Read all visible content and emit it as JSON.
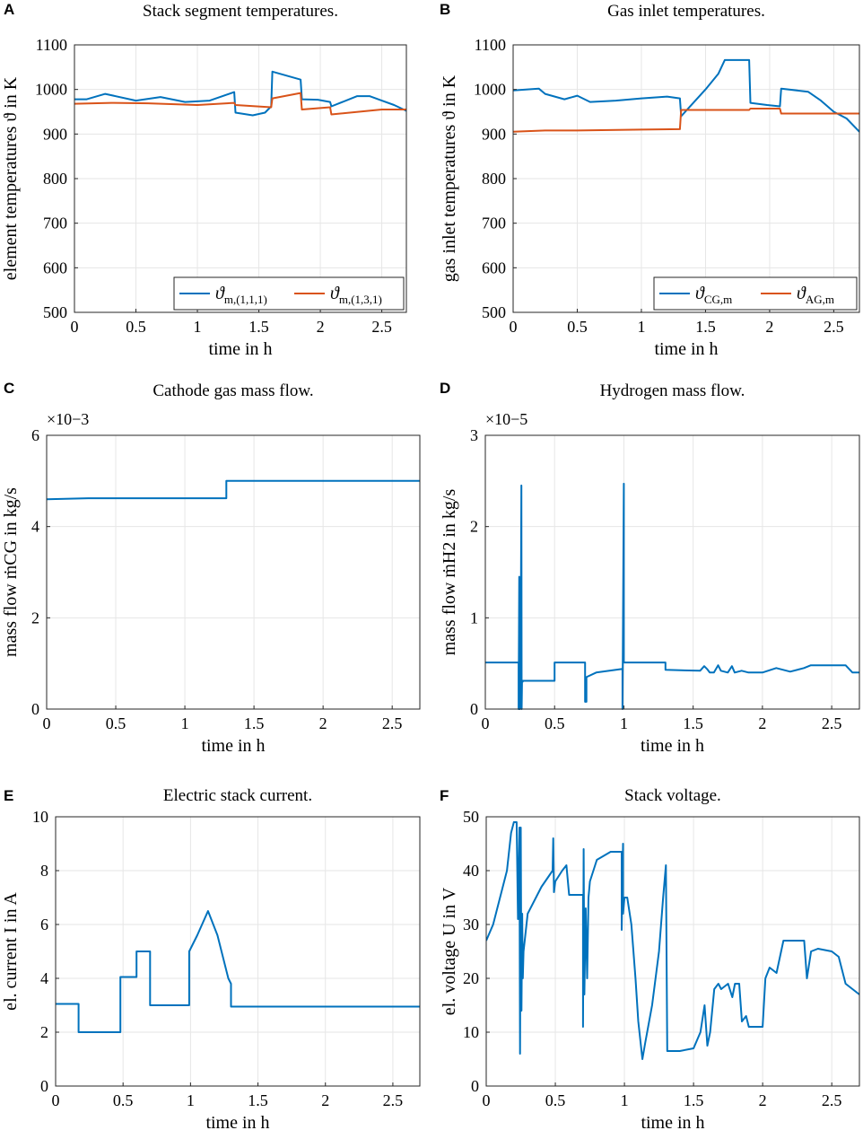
{
  "colors": {
    "blue": "#0072BD",
    "orange": "#D95319"
  },
  "chart_data": [
    {
      "id": "A",
      "type": "line",
      "title": "Stack segment temperatures.",
      "xlabel": "time in h",
      "ylabel": "element temperatures ϑ in K",
      "xlim": [
        0,
        2.7
      ],
      "ylim": [
        500,
        1100
      ],
      "xticks": [
        0,
        0.5,
        1,
        1.5,
        2,
        2.5
      ],
      "xticklabels": [
        "0",
        "0.5",
        "1",
        "1.5",
        "2",
        "2.5"
      ],
      "yticks": [
        500,
        600,
        700,
        800,
        900,
        1000,
        1100
      ],
      "yticklabels": [
        "500",
        "600",
        "700",
        "800",
        "900",
        "1000",
        "1100"
      ],
      "legend_position": "bottom-right",
      "series": [
        {
          "name": "ϑm,(1,1,1)",
          "legend_main": "ϑ",
          "legend_sub": "m,(1,1,1)",
          "color": "blue",
          "x": [
            0,
            0.1,
            0.25,
            0.5,
            0.7,
            0.9,
            1.1,
            1.3,
            1.31,
            1.45,
            1.55,
            1.6,
            1.61,
            1.84,
            1.85,
            1.98,
            2.08,
            2.09,
            2.3,
            2.4,
            2.5,
            2.6,
            2.7
          ],
          "y": [
            978,
            978,
            990,
            975,
            983,
            972,
            975,
            994,
            948,
            942,
            948,
            962,
            1040,
            1022,
            978,
            977,
            972,
            962,
            985,
            985,
            975,
            965,
            952
          ]
        },
        {
          "name": "ϑm,(1,3,1)",
          "legend_main": "ϑ",
          "legend_sub": "m,(1,3,1)",
          "color": "orange",
          "x": [
            0,
            0.3,
            0.6,
            1.0,
            1.3,
            1.31,
            1.6,
            1.61,
            1.84,
            1.85,
            2.08,
            2.09,
            2.5,
            2.7
          ],
          "y": [
            968,
            970,
            969,
            965,
            970,
            965,
            960,
            980,
            992,
            955,
            960,
            944,
            955,
            955
          ]
        }
      ]
    },
    {
      "id": "B",
      "type": "line",
      "title": "Gas inlet temperatures.",
      "xlabel": "time in h",
      "ylabel": "gas inlet temperatures ϑ in K",
      "xlim": [
        0,
        2.7
      ],
      "ylim": [
        500,
        1100
      ],
      "xticks": [
        0,
        0.5,
        1,
        1.5,
        2,
        2.5
      ],
      "xticklabels": [
        "0",
        "0.5",
        "1",
        "1.5",
        "2",
        "2.5"
      ],
      "yticks": [
        500,
        600,
        700,
        800,
        900,
        1000,
        1100
      ],
      "yticklabels": [
        "500",
        "600",
        "700",
        "800",
        "900",
        "1000",
        "1100"
      ],
      "legend_position": "bottom-right",
      "series": [
        {
          "name": "ϑCG,m",
          "legend_main": "ϑ",
          "legend_sub": "CG,m",
          "color": "blue",
          "x": [
            0,
            0.2,
            0.25,
            0.4,
            0.5,
            0.6,
            0.8,
            1.0,
            1.2,
            1.3,
            1.31,
            1.5,
            1.6,
            1.65,
            1.84,
            1.85,
            1.98,
            2.08,
            2.09,
            2.3,
            2.4,
            2.5,
            2.6,
            2.7
          ],
          "y": [
            998,
            1002,
            990,
            978,
            986,
            972,
            975,
            980,
            984,
            980,
            940,
            1000,
            1035,
            1066,
            1066,
            970,
            965,
            962,
            1002,
            995,
            975,
            950,
            935,
            905
          ]
        },
        {
          "name": "ϑAG,m",
          "legend_main": "ϑ",
          "legend_sub": "AG,m",
          "color": "orange",
          "x": [
            0,
            0.25,
            0.5,
            1.0,
            1.3,
            1.31,
            1.6,
            1.84,
            1.85,
            2.08,
            2.09,
            2.7
          ],
          "y": [
            905,
            908,
            908,
            910,
            911,
            954,
            954,
            954,
            957,
            957,
            946,
            946
          ]
        }
      ]
    },
    {
      "id": "C",
      "type": "line",
      "title": "Cathode gas mass flow.",
      "xlabel": "time in h",
      "ylabel": "mass flow ṁCG in kg/s",
      "exponent": "×10−3",
      "xlim": [
        0,
        2.7
      ],
      "ylim": [
        0,
        6
      ],
      "xticks": [
        0,
        0.5,
        1,
        1.5,
        2,
        2.5
      ],
      "xticklabels": [
        "0",
        "0.5",
        "1",
        "1.5",
        "2",
        "2.5"
      ],
      "yticks": [
        0,
        2,
        4,
        6
      ],
      "yticklabels": [
        "0",
        "2",
        "4",
        "6"
      ],
      "series": [
        {
          "name": "mass flow CG",
          "color": "blue",
          "x": [
            0,
            0.3,
            1.3,
            1.3,
            2.7
          ],
          "y": [
            4.6,
            4.62,
            4.62,
            5.0,
            5.0
          ]
        }
      ]
    },
    {
      "id": "D",
      "type": "line",
      "title": "Hydrogen mass flow.",
      "xlabel": "time in h",
      "ylabel": "mass flow ṁH2 in kg/s",
      "exponent": "×10−5",
      "xlim": [
        0,
        2.7
      ],
      "ylim": [
        0,
        3
      ],
      "xticks": [
        0,
        0.5,
        1,
        1.5,
        2,
        2.5
      ],
      "xticklabels": [
        "0",
        "0.5",
        "1",
        "1.5",
        "2",
        "2.5"
      ],
      "yticks": [
        0,
        1,
        2,
        3
      ],
      "yticklabels": [
        "0",
        "1",
        "2",
        "3"
      ],
      "series": [
        {
          "name": "mass flow H2",
          "color": "blue",
          "x": [
            0,
            0.24,
            0.24,
            0.245,
            0.25,
            0.255,
            0.26,
            0.262,
            0.265,
            0.27,
            0.27,
            0.5,
            0.5,
            0.72,
            0.72,
            0.73,
            0.73,
            0.8,
            0.99,
            0.99,
            1.0,
            1.0,
            1.01,
            1.01,
            1.3,
            1.3,
            1.55,
            1.58,
            1.6,
            1.62,
            1.65,
            1.68,
            1.7,
            1.75,
            1.78,
            1.8,
            1.85,
            1.9,
            2.0,
            2.1,
            2.15,
            2.2,
            2.3,
            2.35,
            2.5,
            2.6,
            2.65,
            2.7
          ],
          "y": [
            0.51,
            0.51,
            0,
            1.45,
            0,
            0.5,
            2.45,
            0,
            0.3,
            0.3,
            0.31,
            0.31,
            0.51,
            0.51,
            0.08,
            0.08,
            0.35,
            0.4,
            0.44,
            0,
            2.47,
            0.51,
            0.51,
            0.51,
            0.51,
            0.43,
            0.42,
            0.47,
            0.44,
            0.4,
            0.4,
            0.48,
            0.42,
            0.4,
            0.47,
            0.4,
            0.42,
            0.4,
            0.4,
            0.45,
            0.43,
            0.41,
            0.45,
            0.48,
            0.48,
            0.48,
            0.4,
            0.4
          ]
        }
      ]
    },
    {
      "id": "E",
      "type": "line",
      "title": "Electric stack current.",
      "xlabel": "time in h",
      "ylabel": "el. current I in A",
      "xlim": [
        0,
        2.7
      ],
      "ylim": [
        0,
        10
      ],
      "xticks": [
        0,
        0.5,
        1,
        1.5,
        2,
        2.5
      ],
      "xticklabels": [
        "0",
        "0.5",
        "1",
        "1.5",
        "2",
        "2.5"
      ],
      "yticks": [
        0,
        2,
        4,
        6,
        8,
        10
      ],
      "yticklabels": [
        "0",
        "2",
        "4",
        "6",
        "8",
        "10"
      ],
      "series": [
        {
          "name": "current",
          "color": "blue",
          "x": [
            0,
            0.17,
            0.17,
            0.48,
            0.48,
            0.6,
            0.6,
            0.7,
            0.7,
            0.99,
            0.99,
            1.05,
            1.13,
            1.2,
            1.28,
            1.3,
            1.3,
            2.7
          ],
          "y": [
            3.05,
            3.05,
            2.0,
            2.0,
            4.05,
            4.05,
            5.0,
            5.0,
            3.0,
            3.0,
            5.0,
            5.6,
            6.5,
            5.6,
            4.0,
            3.8,
            2.95,
            2.95
          ]
        }
      ]
    },
    {
      "id": "F",
      "type": "line",
      "title": "Stack voltage.",
      "xlabel": "time in h",
      "ylabel": "el. voltage U in V",
      "xlim": [
        0,
        2.7
      ],
      "ylim": [
        0,
        50
      ],
      "xticks": [
        0,
        0.5,
        1,
        1.5,
        2,
        2.5
      ],
      "xticklabels": [
        "0",
        "0.5",
        "1",
        "1.5",
        "2",
        "2.5"
      ],
      "yticks": [
        0,
        10,
        20,
        30,
        40,
        50
      ],
      "yticklabels": [
        "0",
        "10",
        "20",
        "30",
        "40",
        "50"
      ],
      "series": [
        {
          "name": "voltage",
          "color": "blue",
          "x": [
            0,
            0.05,
            0.1,
            0.15,
            0.18,
            0.2,
            0.22,
            0.23,
            0.24,
            0.245,
            0.25,
            0.255,
            0.26,
            0.265,
            0.27,
            0.3,
            0.4,
            0.48,
            0.485,
            0.49,
            0.5,
            0.55,
            0.58,
            0.6,
            0.7,
            0.7,
            0.705,
            0.71,
            0.72,
            0.73,
            0.74,
            0.75,
            0.8,
            0.9,
            0.98,
            0.98,
            0.99,
            0.99,
            1.0,
            1.02,
            1.05,
            1.08,
            1.1,
            1.13,
            1.15,
            1.2,
            1.25,
            1.28,
            1.3,
            1.31,
            1.4,
            1.5,
            1.55,
            1.58,
            1.6,
            1.62,
            1.65,
            1.68,
            1.7,
            1.75,
            1.78,
            1.8,
            1.83,
            1.85,
            1.88,
            1.9,
            1.95,
            2.0,
            2.02,
            2.05,
            2.1,
            2.15,
            2.2,
            2.25,
            2.3,
            2.32,
            2.35,
            2.4,
            2.5,
            2.55,
            2.6,
            2.65,
            2.7
          ],
          "y": [
            27,
            30,
            35,
            40,
            47,
            49,
            49,
            31,
            48,
            6,
            48,
            14,
            32,
            20,
            25,
            32,
            37,
            40,
            46,
            36,
            38,
            40,
            41,
            35.5,
            35.5,
            11,
            44,
            17,
            33,
            20,
            35,
            38,
            42,
            43.5,
            43.5,
            29,
            45,
            32,
            35,
            35,
            30,
            20,
            12,
            5,
            8,
            15,
            25,
            35,
            41,
            6.5,
            6.5,
            7,
            10,
            15,
            7.5,
            10,
            18,
            19,
            18,
            19,
            16.5,
            19,
            19,
            12,
            13,
            11,
            11,
            11,
            20,
            22,
            21,
            27,
            27,
            27,
            27,
            20,
            25,
            25.5,
            25,
            24,
            19,
            18,
            17
          ]
        }
      ]
    }
  ]
}
